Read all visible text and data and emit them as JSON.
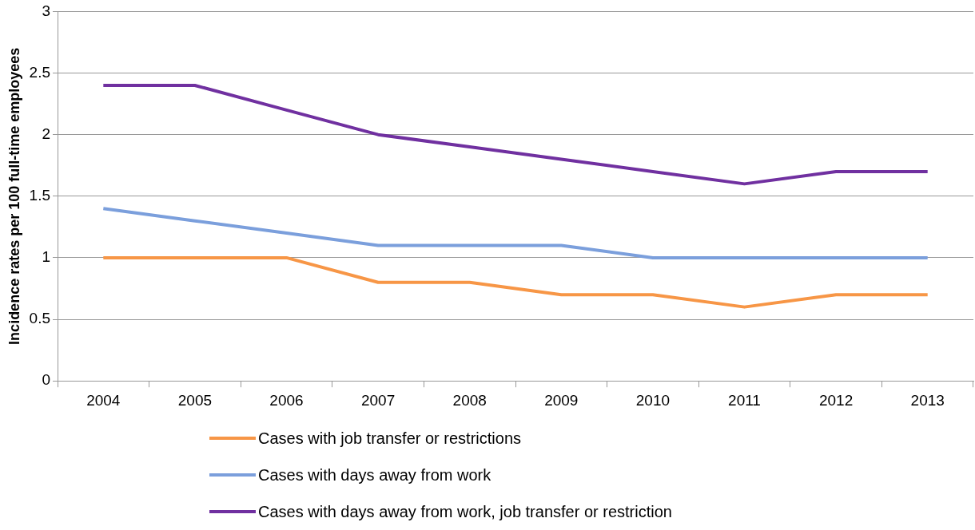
{
  "chart_data": {
    "type": "line",
    "ylabel": "Incidence rates per 100 full-time employees",
    "categories": [
      "2004",
      "2005",
      "2006",
      "2007",
      "2008",
      "2009",
      "2010",
      "2011",
      "2012",
      "2013"
    ],
    "series": [
      {
        "name": "Cases with job transfer or restrictions",
        "color": "#f79646",
        "values": [
          1,
          1,
          1,
          0.8,
          0.8,
          0.7,
          0.7,
          0.6,
          0.7,
          0.7
        ]
      },
      {
        "name": "Cases with days away from work",
        "color": "#7b9fdc",
        "values": [
          1.4,
          1.3,
          1.2,
          1.1,
          1.1,
          1.1,
          1,
          1,
          1,
          1
        ]
      },
      {
        "name": "Cases with days away from work, job transfer or restriction",
        "color": "#7030a0",
        "values": [
          2.4,
          2.4,
          2.2,
          2,
          1.9,
          1.8,
          1.7,
          1.6,
          1.7,
          1.7
        ]
      }
    ],
    "ylim": [
      0,
      3
    ],
    "yticks": [
      0,
      0.5,
      1,
      1.5,
      2,
      2.5,
      3
    ],
    "grid": "y",
    "legend": "bottom",
    "marker": "none",
    "line_style": "solid"
  }
}
